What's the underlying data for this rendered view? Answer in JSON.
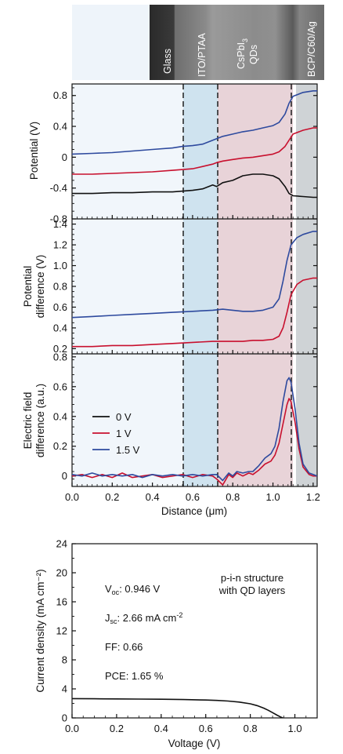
{
  "chart_data": [
    {
      "type": "image",
      "layers": [
        {
          "label": "Glass"
        },
        {
          "label": "ITO/PTAA"
        },
        {
          "label": "CsPbI3 QDs",
          "line1_main": "CsPbI",
          "line1_sub": "3",
          "line2": "QDs"
        },
        {
          "label": "BCP/C60/Ag"
        }
      ]
    },
    {
      "type": "line",
      "panel": "top",
      "ylabel": "Potential (V)",
      "ylim": [
        -0.8,
        0.95
      ],
      "yticks": [
        "0.8",
        "0.4",
        "0",
        "-0.4",
        "-0.8"
      ],
      "ytick_values": [
        0.8,
        0.4,
        0,
        -0.4,
        -0.8
      ],
      "xlim": [
        0,
        1.22
      ],
      "series": [
        {
          "name": "0 V",
          "color": "#111111",
          "x": [
            0,
            0.1,
            0.2,
            0.3,
            0.4,
            0.5,
            0.55,
            0.6,
            0.65,
            0.7,
            0.72,
            0.75,
            0.8,
            0.85,
            0.9,
            0.95,
            1.0,
            1.03,
            1.06,
            1.08,
            1.1,
            1.15,
            1.2,
            1.22
          ],
          "values": [
            -0.47,
            -0.47,
            -0.46,
            -0.46,
            -0.45,
            -0.45,
            -0.44,
            -0.43,
            -0.41,
            -0.36,
            -0.38,
            -0.33,
            -0.3,
            -0.24,
            -0.22,
            -0.22,
            -0.24,
            -0.28,
            -0.38,
            -0.47,
            -0.5,
            -0.51,
            -0.52,
            -0.52
          ]
        },
        {
          "name": "1 V",
          "color": "#c8102e",
          "x": [
            0,
            0.1,
            0.2,
            0.3,
            0.4,
            0.5,
            0.55,
            0.6,
            0.65,
            0.7,
            0.72,
            0.75,
            0.8,
            0.85,
            0.9,
            0.95,
            1.0,
            1.03,
            1.06,
            1.08,
            1.1,
            1.15,
            1.2,
            1.22
          ],
          "values": [
            -0.22,
            -0.22,
            -0.21,
            -0.2,
            -0.19,
            -0.17,
            -0.16,
            -0.15,
            -0.12,
            -0.09,
            -0.07,
            -0.05,
            -0.03,
            -0.01,
            0.0,
            0.02,
            0.04,
            0.07,
            0.14,
            0.22,
            0.3,
            0.35,
            0.38,
            0.38
          ]
        },
        {
          "name": "1.5 V",
          "color": "#2e4a9e",
          "x": [
            0,
            0.1,
            0.2,
            0.3,
            0.4,
            0.5,
            0.55,
            0.6,
            0.65,
            0.7,
            0.72,
            0.75,
            0.8,
            0.85,
            0.9,
            0.95,
            1.0,
            1.03,
            1.06,
            1.08,
            1.1,
            1.15,
            1.2,
            1.22
          ],
          "values": [
            0.04,
            0.05,
            0.06,
            0.08,
            0.1,
            0.12,
            0.14,
            0.15,
            0.17,
            0.22,
            0.24,
            0.27,
            0.3,
            0.33,
            0.35,
            0.38,
            0.41,
            0.45,
            0.56,
            0.7,
            0.79,
            0.84,
            0.86,
            0.86
          ]
        }
      ]
    },
    {
      "type": "line",
      "panel": "middle",
      "ylabel_line1": "Potential",
      "ylabel_line2": "difference (V)",
      "ylim": [
        0.15,
        1.45
      ],
      "yticks": [
        "1.4",
        "1.2",
        "1.0",
        "0.8",
        "0.6",
        "0.4",
        "0.2"
      ],
      "ytick_values": [
        1.4,
        1.2,
        1.0,
        0.8,
        0.6,
        0.4,
        0.2
      ],
      "xlim": [
        0,
        1.22
      ],
      "series": [
        {
          "name": "1 V",
          "color": "#c8102e",
          "x": [
            0,
            0.1,
            0.2,
            0.3,
            0.4,
            0.5,
            0.6,
            0.7,
            0.75,
            0.8,
            0.85,
            0.9,
            0.95,
            1.0,
            1.03,
            1.05,
            1.07,
            1.09,
            1.12,
            1.15,
            1.2,
            1.22
          ],
          "values": [
            0.22,
            0.22,
            0.23,
            0.23,
            0.24,
            0.25,
            0.26,
            0.27,
            0.27,
            0.27,
            0.27,
            0.28,
            0.28,
            0.29,
            0.32,
            0.4,
            0.55,
            0.72,
            0.82,
            0.86,
            0.88,
            0.88
          ]
        },
        {
          "name": "1.5 V",
          "color": "#2e4a9e",
          "x": [
            0,
            0.1,
            0.2,
            0.3,
            0.4,
            0.5,
            0.6,
            0.7,
            0.75,
            0.8,
            0.85,
            0.9,
            0.95,
            1.0,
            1.03,
            1.05,
            1.07,
            1.09,
            1.12,
            1.15,
            1.2,
            1.22
          ],
          "values": [
            0.5,
            0.51,
            0.52,
            0.53,
            0.54,
            0.55,
            0.56,
            0.57,
            0.58,
            0.57,
            0.56,
            0.56,
            0.57,
            0.6,
            0.68,
            0.85,
            1.05,
            1.2,
            1.27,
            1.3,
            1.33,
            1.33
          ]
        }
      ]
    },
    {
      "type": "line",
      "panel": "bottom",
      "ylabel_line1": "Electric field",
      "ylabel_line2": "difference (a.u.)",
      "xlabel_main": "Distance (",
      "xlabel_unit": "μm",
      "xlabel_close": ")",
      "xlim": [
        0,
        1.22
      ],
      "ylim": [
        -0.07,
        0.82
      ],
      "xticks": [
        "0.0",
        "0.2",
        "0.4",
        "0.6",
        "0.8",
        "1.0",
        "1.2"
      ],
      "xtick_values": [
        0,
        0.2,
        0.4,
        0.6,
        0.8,
        1.0,
        1.2
      ],
      "yticks": [
        "0.8",
        "0.6",
        "0.4",
        "0.2",
        "0"
      ],
      "ytick_values": [
        0.8,
        0.6,
        0.4,
        0.2,
        0
      ],
      "legend": [
        "0 V",
        "1 V",
        "1.5 V"
      ],
      "legend_colors": [
        "#111111",
        "#c8102e",
        "#2e4a9e"
      ],
      "series": [
        {
          "name": "1 V",
          "color": "#c8102e",
          "x": [
            0,
            0.05,
            0.1,
            0.15,
            0.2,
            0.25,
            0.3,
            0.35,
            0.4,
            0.45,
            0.5,
            0.55,
            0.6,
            0.65,
            0.7,
            0.72,
            0.75,
            0.78,
            0.8,
            0.82,
            0.85,
            0.88,
            0.9,
            0.93,
            0.96,
            0.99,
            1.01,
            1.03,
            1.05,
            1.07,
            1.08,
            1.09,
            1.11,
            1.13,
            1.15,
            1.18,
            1.2,
            1.22
          ],
          "values": [
            0.0,
            0.01,
            -0.01,
            0.01,
            -0.01,
            0.02,
            -0.01,
            0.0,
            0.01,
            -0.01,
            0.0,
            0.01,
            -0.01,
            0.01,
            0.0,
            -0.02,
            -0.06,
            0.01,
            -0.01,
            0.02,
            0.0,
            0.02,
            0.01,
            0.04,
            0.08,
            0.1,
            0.14,
            0.22,
            0.35,
            0.48,
            0.52,
            0.5,
            0.36,
            0.18,
            0.06,
            0.01,
            0.0,
            0.0
          ]
        },
        {
          "name": "1.5 V",
          "color": "#2e4a9e",
          "x": [
            0,
            0.05,
            0.1,
            0.15,
            0.2,
            0.25,
            0.3,
            0.35,
            0.4,
            0.45,
            0.5,
            0.55,
            0.6,
            0.65,
            0.7,
            0.72,
            0.75,
            0.78,
            0.8,
            0.82,
            0.85,
            0.88,
            0.9,
            0.93,
            0.96,
            0.99,
            1.01,
            1.03,
            1.05,
            1.07,
            1.08,
            1.09,
            1.11,
            1.13,
            1.15,
            1.18,
            1.2,
            1.22
          ],
          "values": [
            0.01,
            0.0,
            0.02,
            0.0,
            0.01,
            0.0,
            0.01,
            -0.01,
            0.01,
            0.0,
            0.01,
            0.0,
            0.01,
            0.0,
            0.01,
            0.01,
            -0.03,
            0.02,
            0.0,
            0.03,
            0.02,
            0.03,
            0.03,
            0.07,
            0.12,
            0.15,
            0.2,
            0.32,
            0.5,
            0.64,
            0.66,
            0.63,
            0.45,
            0.22,
            0.08,
            0.02,
            0.01,
            0.0
          ]
        }
      ]
    },
    {
      "type": "line",
      "panel": "j-v",
      "xlabel": "Voltage (V)",
      "ylabel": "Current density (mA cm⁻²)",
      "xlim": [
        0,
        1.1
      ],
      "ylim": [
        0,
        24
      ],
      "xticks": [
        "0.0",
        "0.2",
        "0.4",
        "0.6",
        "0.8",
        "1.0"
      ],
      "xtick_values": [
        0,
        0.2,
        0.4,
        0.6,
        0.8,
        1.0
      ],
      "yticks": [
        "24",
        "20",
        "16",
        "12",
        "8",
        "4",
        "0"
      ],
      "ytick_values": [
        24,
        20,
        16,
        12,
        8,
        4,
        0
      ],
      "annotation_line1": "p-i-n structure",
      "annotation_line2": "with QD layers",
      "voc": {
        "main": "V",
        "sub": "oc",
        "value": ": 0.946 V"
      },
      "jsc": {
        "main": "J",
        "sub": "sc",
        "value": ": 2.66 mA cm",
        "sup": "-2"
      },
      "ff": "FF: 0.66",
      "pce": "PCE: 1.65 %",
      "series": [
        {
          "name": "J-V",
          "color": "#111111",
          "x": [
            0,
            0.1,
            0.2,
            0.3,
            0.4,
            0.5,
            0.6,
            0.65,
            0.7,
            0.75,
            0.8,
            0.83,
            0.86,
            0.88,
            0.9,
            0.92,
            0.935,
            0.946
          ],
          "values": [
            2.66,
            2.64,
            2.62,
            2.6,
            2.57,
            2.53,
            2.47,
            2.41,
            2.32,
            2.18,
            1.95,
            1.7,
            1.35,
            1.06,
            0.72,
            0.38,
            0.14,
            0.0
          ]
        }
      ]
    }
  ]
}
